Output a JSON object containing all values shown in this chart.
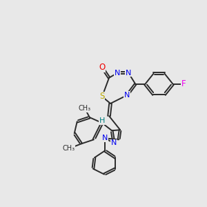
{
  "bg_color": "#e8e8e8",
  "bond_color": "#2a2a2a",
  "bond_width": 1.4,
  "atom_colors": {
    "N": "#0000ee",
    "O": "#ee0000",
    "S": "#bbaa00",
    "F": "#ee00ee",
    "H": "#008080",
    "C": "#2a2a2a"
  },
  "figsize": [
    3.0,
    3.0
  ],
  "dpi": 100
}
